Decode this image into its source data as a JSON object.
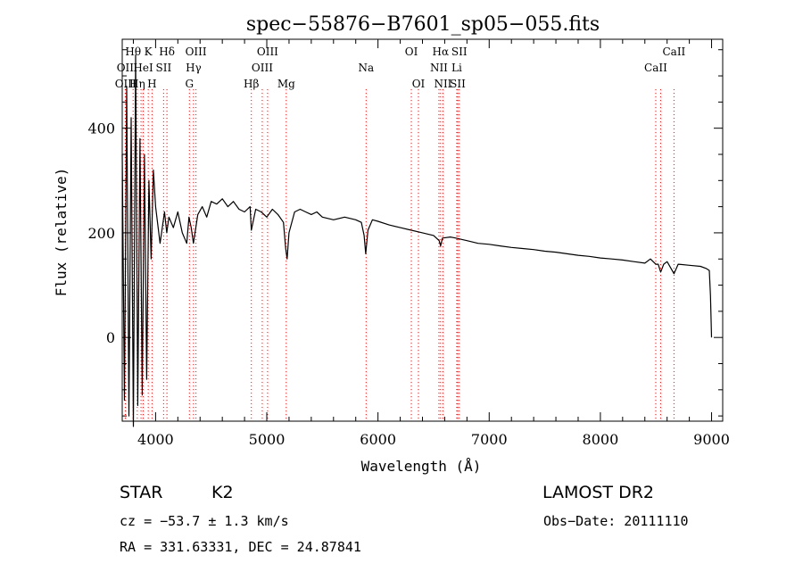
{
  "chart_data": {
    "type": "line",
    "title": "spec−55876−B7601_sp05−055.fits",
    "xlabel": "Wavelength (Å)",
    "ylabel": "Flux (relative)",
    "xlim": [
      3700,
      9100
    ],
    "ylim": [
      -160,
      570
    ],
    "x_ticks": [
      4000,
      5000,
      6000,
      7000,
      8000,
      9000
    ],
    "y_ticks": [
      0,
      200,
      400
    ],
    "x_minor_step": 200,
    "y_minor_step": 50,
    "grid": false,
    "line_color": "#000000",
    "marker_color": "#ff0000",
    "series": [
      {
        "x": [
          3700,
          3720,
          3740,
          3760,
          3780,
          3800,
          3820,
          3840,
          3860,
          3880,
          3900,
          3920,
          3940,
          3960,
          3980,
          4000,
          4040,
          4080,
          4100,
          4120,
          4160,
          4200,
          4240,
          4280,
          4300,
          4320,
          4340,
          4380,
          4420,
          4460,
          4500,
          4550,
          4600,
          4650,
          4700,
          4750,
          4800,
          4850,
          4861,
          4900,
          4950,
          5000,
          5050,
          5100,
          5150,
          5170,
          5183,
          5200,
          5250,
          5300,
          5350,
          5400,
          5450,
          5500,
          5600,
          5700,
          5800,
          5850,
          5875,
          5890,
          5910,
          5950,
          6000,
          6100,
          6200,
          6300,
          6400,
          6500,
          6550,
          6563,
          6580,
          6650,
          6700,
          6800,
          6900,
          7000,
          7100,
          7200,
          7300,
          7400,
          7500,
          7600,
          7700,
          7800,
          7900,
          8000,
          8100,
          8200,
          8300,
          8400,
          8450,
          8498,
          8520,
          8542,
          8570,
          8600,
          8662,
          8700,
          8800,
          8900,
          8950,
          8980,
          8990,
          9000
        ],
        "y": [
          350,
          -120,
          480,
          -150,
          420,
          -170,
          540,
          -130,
          380,
          -110,
          350,
          -80,
          300,
          150,
          320,
          250,
          180,
          240,
          200,
          230,
          210,
          240,
          200,
          180,
          230,
          210,
          180,
          235,
          250,
          230,
          260,
          255,
          265,
          250,
          260,
          245,
          240,
          250,
          205,
          245,
          240,
          230,
          245,
          235,
          220,
          170,
          150,
          200,
          240,
          245,
          240,
          235,
          240,
          230,
          225,
          230,
          225,
          220,
          195,
          160,
          205,
          225,
          222,
          215,
          210,
          205,
          200,
          195,
          185,
          175,
          190,
          192,
          190,
          185,
          180,
          178,
          175,
          172,
          170,
          168,
          165,
          163,
          160,
          157,
          155,
          152,
          150,
          148,
          145,
          142,
          150,
          140,
          140,
          125,
          140,
          145,
          122,
          140,
          138,
          136,
          132,
          128,
          80,
          0
        ]
      }
    ],
    "line_markers": [
      {
        "label": "Hθ",
        "x": 3798,
        "row": 0
      },
      {
        "label": "K",
        "x": 3934,
        "row": 0
      },
      {
        "label": "Hδ",
        "x": 4102,
        "row": 0
      },
      {
        "label": "OIII",
        "x": 4363,
        "row": 0
      },
      {
        "label": "OIII",
        "x": 5007,
        "row": 0
      },
      {
        "label": "OI",
        "x": 6300,
        "row": 0
      },
      {
        "label": "Hα",
        "x": 6563,
        "row": 0
      },
      {
        "label": "SII",
        "x": 6731,
        "row": 0
      },
      {
        "label": "CaII",
        "x": 8662,
        "row": 0
      },
      {
        "label": "OII",
        "x": 3727,
        "row": 1
      },
      {
        "label": "HeI",
        "x": 3889,
        "row": 1
      },
      {
        "label": "SII",
        "x": 4072,
        "row": 1
      },
      {
        "label": "Hγ",
        "x": 4341,
        "row": 1
      },
      {
        "label": "OIII",
        "x": 4959,
        "row": 1
      },
      {
        "label": "Na",
        "x": 5893,
        "row": 1
      },
      {
        "label": "NII",
        "x": 6548,
        "row": 1
      },
      {
        "label": "Li",
        "x": 6708,
        "row": 1
      },
      {
        "label": "CaII",
        "x": 8498,
        "row": 1
      },
      {
        "label": "OIII",
        "x": 3730,
        "row": 2
      },
      {
        "label": "Hη",
        "x": 3835,
        "row": 2
      },
      {
        "label": "H",
        "x": 3968,
        "row": 2
      },
      {
        "label": "G",
        "x": 4304,
        "row": 2
      },
      {
        "label": "Hβ",
        "x": 4861,
        "row": 2
      },
      {
        "label": "Mg",
        "x": 5175,
        "row": 2
      },
      {
        "label": "OI",
        "x": 6364,
        "row": 2
      },
      {
        "label": "NII",
        "x": 6584,
        "row": 2
      },
      {
        "label": "SII",
        "x": 6717,
        "row": 2
      }
    ],
    "extra_marker_lines": [
      3869,
      3889,
      3934,
      3968,
      4102,
      4072,
      4304,
      4341,
      4363,
      4861,
      4959,
      5007,
      5175,
      5893,
      6300,
      6364,
      6548,
      6563,
      6584,
      6708,
      6717,
      6731,
      8498,
      8542,
      8662
    ]
  },
  "footer": {
    "object_class": "STAR",
    "subclass": "K2",
    "survey": "LAMOST DR2",
    "redshift": "cz = −53.7 ± 1.3 km/s",
    "obs_date": "Obs−Date: 20111110",
    "coords": "RA = 331.63331, DEC =  24.87841"
  }
}
